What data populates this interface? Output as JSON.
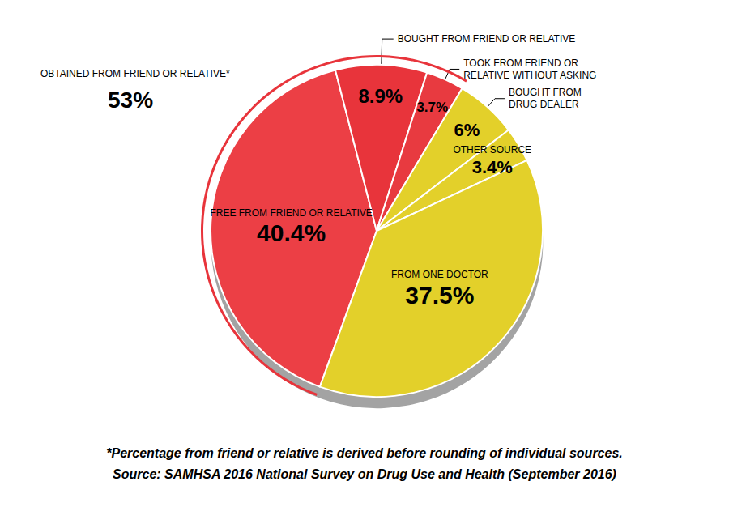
{
  "chart_data": {
    "type": "pie",
    "categories": [
      "FREE FROM FRIEND OR RELATIVE",
      "BOUGHT FROM FRIEND OR RELATIVE",
      "TOOK FROM FRIEND OR RELATIVE WITHOUT ASKING",
      "BOUGHT FROM DRUG DEALER",
      "OTHER SOURCE",
      "FROM ONE DOCTOR"
    ],
    "values": [
      40.4,
      8.9,
      3.7,
      6,
      3.4,
      37.5
    ],
    "value_labels": [
      "40.4%",
      "8.9%",
      "3.7%",
      "6%",
      "3.4%",
      "37.5%"
    ],
    "colors": [
      "#ec3f45",
      "#e8343b",
      "#e83a40",
      "#e3d02a",
      "#e3d02a",
      "#e3d02a"
    ],
    "data_labels": true,
    "annotations": [
      {
        "text": "OBTAINED FROM FRIEND OR RELATIVE*",
        "value": 53,
        "value_label": "53%"
      }
    ],
    "footnotes": [
      "*Percentage from friend or relative is derived before rounding of individual sources.",
      "Source: SAMHSA 2016 National Survey on Drug Use and Health (September 2016)"
    ]
  }
}
